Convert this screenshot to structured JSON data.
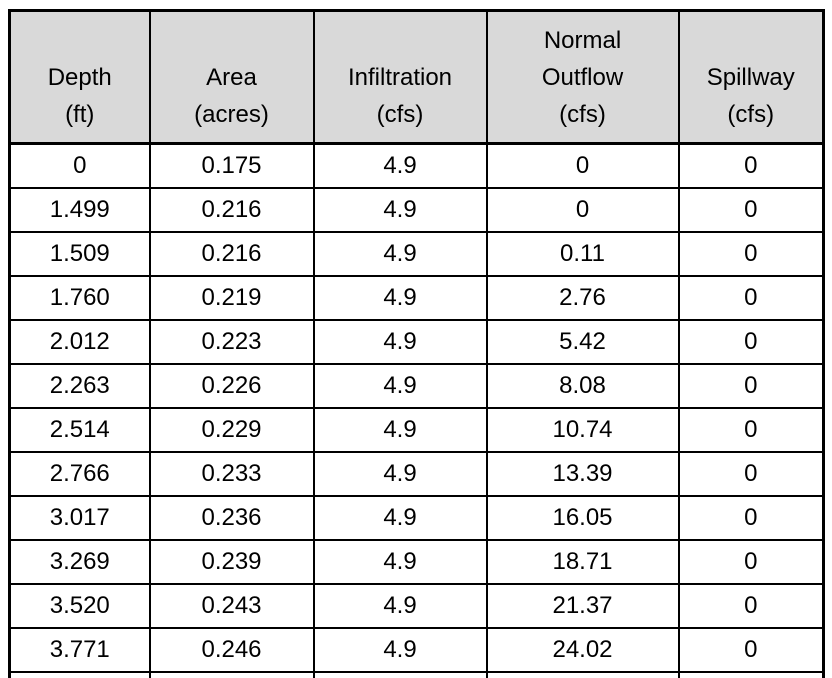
{
  "table": {
    "name": "stage-storage-discharge-table",
    "headers": [
      {
        "id": "depth",
        "lines": [
          "Depth",
          "(ft)"
        ]
      },
      {
        "id": "area",
        "lines": [
          "Area",
          "(acres)"
        ]
      },
      {
        "id": "infiltration",
        "lines": [
          "Infiltration",
          "(cfs)"
        ]
      },
      {
        "id": "normal-outflow",
        "lines": [
          "Normal",
          "Outflow",
          "(cfs)"
        ]
      },
      {
        "id": "spillway",
        "lines": [
          "Spillway",
          "(cfs)"
        ]
      }
    ],
    "rows": [
      [
        "0",
        "0.175",
        "4.9",
        "0",
        "0"
      ],
      [
        "1.499",
        "0.216",
        "4.9",
        "0",
        "0"
      ],
      [
        "1.509",
        "0.216",
        "4.9",
        "0.11",
        "0"
      ],
      [
        "1.760",
        "0.219",
        "4.9",
        "2.76",
        "0"
      ],
      [
        "2.012",
        "0.223",
        "4.9",
        "5.42",
        "0"
      ],
      [
        "2.263",
        "0.226",
        "4.9",
        "8.08",
        "0"
      ],
      [
        "2.514",
        "0.229",
        "4.9",
        "10.74",
        "0"
      ],
      [
        "2.766",
        "0.233",
        "4.9",
        "13.39",
        "0"
      ],
      [
        "3.017",
        "0.236",
        "4.9",
        "16.05",
        "0"
      ],
      [
        "3.269",
        "0.239",
        "4.9",
        "18.71",
        "0"
      ],
      [
        "3.520",
        "0.243",
        "4.9",
        "21.37",
        "0"
      ],
      [
        "3.771",
        "0.246",
        "4.9",
        "24.02",
        "0"
      ]
    ],
    "colors": {
      "header_background": "#d9d9d9",
      "border": "#000000",
      "text": "#000000"
    }
  }
}
